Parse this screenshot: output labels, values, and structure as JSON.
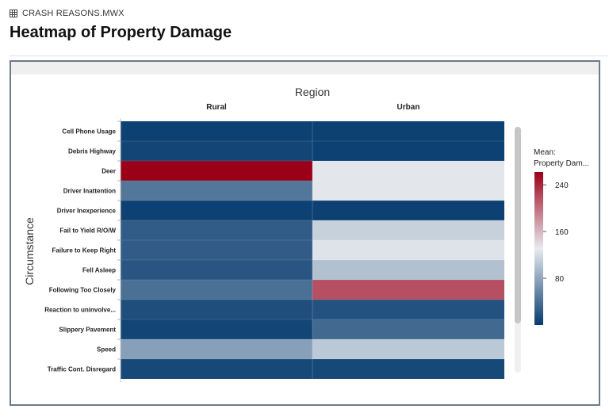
{
  "file": {
    "name": "CRASH REASONS.MWX",
    "icon": "table-grid-icon"
  },
  "page": {
    "title": "Heatmap of Property Damage"
  },
  "colors": {
    "low": "#053a6e",
    "mid": "#e8ebef",
    "high": "#9b0019",
    "panel_border": "#6c7a89"
  },
  "chart_data": {
    "type": "heatmap",
    "column_axis_title": "Region",
    "row_axis_title": "Circumstance",
    "columns": [
      "Rural",
      "Urban"
    ],
    "rows": [
      "Cell Phone Usage",
      "Debris Highway",
      "Deer",
      "Driver Inattention",
      "Driver Inexperience",
      "Fail to Yield R/O/W",
      "Failure to Keep Right",
      "Fell Asleep",
      "Following Too Closely",
      "Reaction to uninvolve...",
      "Slippery Pavement",
      "Speed",
      "Traffic Cont. Disregard"
    ],
    "values": [
      [
        5,
        5
      ],
      [
        8,
        5
      ],
      [
        262,
        128
      ],
      [
        45,
        128
      ],
      [
        5,
        5
      ],
      [
        25,
        112
      ],
      [
        25,
        125
      ],
      [
        20,
        100
      ],
      [
        40,
        218
      ],
      [
        15,
        18
      ],
      [
        8,
        35
      ],
      [
        75,
        105
      ],
      [
        10,
        10
      ]
    ],
    "legend": {
      "title_line1": "Mean:",
      "title_line2": "Property Dam...",
      "ticks": [
        "240",
        "160",
        "80"
      ],
      "tick_values": [
        240,
        160,
        80
      ],
      "min": 0,
      "max": 262
    }
  }
}
